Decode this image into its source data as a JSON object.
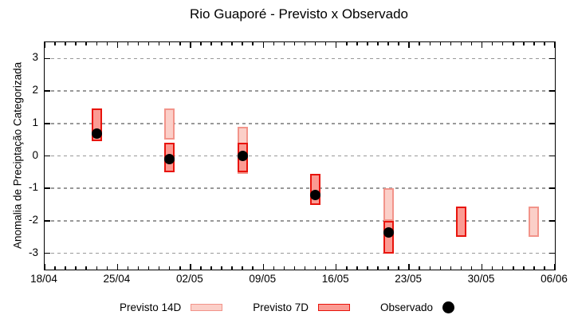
{
  "title": "Rio Guaporé - Previsto x Observado",
  "legend": {
    "items": [
      {
        "label": "Previsto 14D",
        "series": "Previsto 14D"
      },
      {
        "label": "Previsto 7D",
        "series": "Previsto 7D"
      },
      {
        "label": "Observado",
        "series": "Observado"
      }
    ]
  },
  "chart_data": {
    "type": "bar",
    "subtype": "forecast-range-boxes-with-observed-points",
    "title": "Rio Guaporé - Previsto x Observado",
    "xlabel": "",
    "ylabel": "Anomalia de Preciptação Categorizada",
    "x_tick_labels": [
      "18/04",
      "25/04",
      "02/05",
      "09/05",
      "16/05",
      "23/05",
      "30/05",
      "06/06"
    ],
    "x_tick_days": [
      0,
      7,
      14,
      21,
      28,
      35,
      42,
      49
    ],
    "x_minor_step_days": 1,
    "x_range_days": [
      0,
      49
    ],
    "y_ticks": [
      3,
      2,
      1,
      0,
      -1,
      -2,
      -3
    ],
    "ylim": [
      -3.5,
      3.5
    ],
    "grid": "horizontal dashed gray lines at integer y values",
    "legend_position": "below plot, centered",
    "colors": {
      "previsto14d_fill": "#fbcfc8",
      "previsto14d_border": "#f2948a",
      "previsto7d_fill": "#fb9b93",
      "previsto7d_border": "#e8140c",
      "observado": "#000000",
      "grid": "#999999",
      "axis": "#000000"
    },
    "series": [
      {
        "name": "Previsto 14D",
        "type": "box",
        "fill": "#fbcfc8",
        "border": "#f2948a",
        "points": [
          {
            "date": "30/04",
            "day": 12,
            "low": 0.5,
            "high": 1.45
          },
          {
            "date": "07/05",
            "day": 19,
            "low": -0.55,
            "high": 0.9
          },
          {
            "date": "21/05",
            "day": 33,
            "low": -2.0,
            "high": -1.0
          },
          {
            "date": "04/06",
            "day": 47,
            "low": -2.5,
            "high": -1.55
          }
        ]
      },
      {
        "name": "Previsto 7D",
        "type": "box",
        "fill": "#fb9b93",
        "border": "#e8140c",
        "points": [
          {
            "date": "23/04",
            "day": 5,
            "low": 0.45,
            "high": 1.45
          },
          {
            "date": "30/04",
            "day": 12,
            "low": -0.5,
            "high": 0.4
          },
          {
            "date": "07/05",
            "day": 19,
            "low": -0.5,
            "high": 0.4
          },
          {
            "date": "14/05",
            "day": 26,
            "low": -1.5,
            "high": -0.55
          },
          {
            "date": "21/05",
            "day": 33,
            "low": -3.0,
            "high": -2.0
          },
          {
            "date": "28/05",
            "day": 40,
            "low": -2.5,
            "high": -1.55
          }
        ]
      },
      {
        "name": "Observado",
        "type": "point",
        "color": "#000000",
        "points": [
          {
            "date": "23/04",
            "day": 5,
            "value": 0.7
          },
          {
            "date": "30/04",
            "day": 12,
            "value": -0.1
          },
          {
            "date": "07/05",
            "day": 19,
            "value": 0.0
          },
          {
            "date": "14/05",
            "day": 26,
            "value": -1.2
          },
          {
            "date": "21/05",
            "day": 33,
            "value": -2.35
          }
        ]
      }
    ]
  }
}
